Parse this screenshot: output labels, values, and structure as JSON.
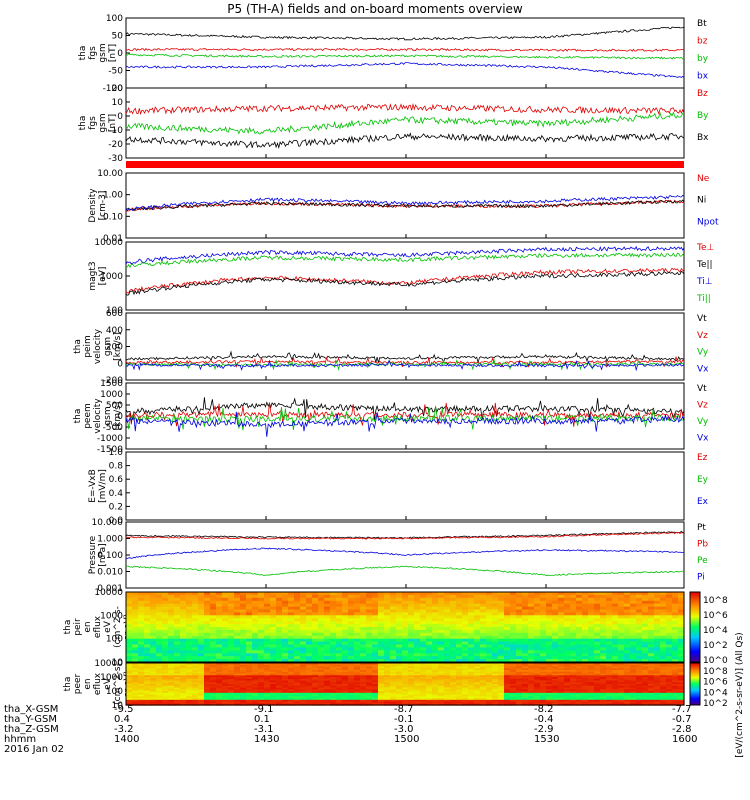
{
  "title": "P5 (TH-A) fields and on-board moments overview",
  "panels": [
    {
      "id": "fgs_gsm",
      "ylabel": [
        "tha",
        "fgs",
        "gsm",
        "[nT]"
      ],
      "ylim": [
        -100,
        100
      ],
      "yticks": [
        "100",
        "50",
        "0",
        "-50",
        "-100"
      ],
      "legend": [
        {
          "text": "Bt",
          "color": "#000000"
        },
        {
          "text": "bz",
          "color": "#e00000"
        },
        {
          "text": "by",
          "color": "#00c000"
        },
        {
          "text": "bx",
          "color": "#0000e0"
        }
      ]
    },
    {
      "id": "fgs_gsm_zoom",
      "ylabel": [
        "tha",
        "fgs",
        "gsm",
        "[nT]"
      ],
      "ylim": [
        -35,
        20
      ],
      "yticks": [
        "20",
        "10",
        "0",
        "-10",
        "-20",
        "-30"
      ],
      "legend": [
        {
          "text": "Bz",
          "color": "#e00000"
        },
        {
          "text": "By",
          "color": "#00c000"
        },
        {
          "text": "Bx",
          "color": "#000000"
        }
      ]
    },
    {
      "id": "density",
      "ylabel": [
        "Density",
        "[cm-3]"
      ],
      "ylim": [
        "0.01",
        "10.00"
      ],
      "yticks": [
        "10.00",
        "1.00",
        "0.10",
        "0.01"
      ],
      "legend": [
        {
          "text": "Ne",
          "color": "#e00000"
        },
        {
          "text": "Ni",
          "color": "#000000"
        },
        {
          "text": "Npot",
          "color": "#0000e0"
        }
      ]
    },
    {
      "id": "temperature",
      "ylabel": [
        "magt3",
        "[eV]"
      ],
      "ylim": [
        "100",
        "10000"
      ],
      "yticks": [
        "10000",
        "1000",
        "100"
      ],
      "legend": [
        {
          "text": "Te⊥",
          "color": "#e00000"
        },
        {
          "text": "Te||",
          "color": "#000000"
        },
        {
          "text": "Ti⊥",
          "color": "#0000e0"
        },
        {
          "text": "Ti||",
          "color": "#00c000"
        }
      ]
    },
    {
      "id": "peim_velocity",
      "ylabel": [
        "tha",
        "peim",
        "velocity",
        "gsm",
        "[km/s]"
      ],
      "ylim": [
        -200,
        600
      ],
      "yticks": [
        "600",
        "400",
        "200",
        "0",
        "-200"
      ],
      "legend": [
        {
          "text": "Vt",
          "color": "#000000"
        },
        {
          "text": "Vz",
          "color": "#e00000"
        },
        {
          "text": "Vy",
          "color": "#00c000"
        },
        {
          "text": "Vx",
          "color": "#0000e0"
        }
      ]
    },
    {
      "id": "peem_velocity",
      "ylabel": [
        "tha",
        "peem",
        "velocity",
        "gsm",
        "[km/s]"
      ],
      "ylim": [
        -1500,
        1500
      ],
      "yticks": [
        "1500",
        "1000",
        "500",
        "0",
        "-500",
        "-1000",
        "-1500"
      ],
      "legend": [
        {
          "text": "Vt",
          "color": "#000000"
        },
        {
          "text": "Vz",
          "color": "#e00000"
        },
        {
          "text": "Vy",
          "color": "#00c000"
        },
        {
          "text": "Vx",
          "color": "#0000e0"
        }
      ]
    },
    {
      "id": "efield",
      "ylabel": [
        "E=-VxB",
        "[mV/m]"
      ],
      "ylim": [
        0,
        1
      ],
      "yticks": [
        "1.0",
        "0.8",
        "0.6",
        "0.4",
        "0.2",
        "0.0"
      ],
      "legend": [
        {
          "text": "Ez",
          "color": "#e00000"
        },
        {
          "text": "Ey",
          "color": "#00c000"
        },
        {
          "text": "Ex",
          "color": "#0000e0"
        }
      ]
    },
    {
      "id": "pressure",
      "ylabel": [
        "Pressure",
        "[nPa]"
      ],
      "ylim": [
        "0.001",
        "10.000"
      ],
      "yticks": [
        "10.000",
        "1.000",
        "0.100",
        "0.010",
        "0.001"
      ],
      "legend": [
        {
          "text": "Pt",
          "color": "#000000"
        },
        {
          "text": "Pb",
          "color": "#e00000"
        },
        {
          "text": "Pe",
          "color": "#00c000"
        },
        {
          "text": "Pi",
          "color": "#0000e0"
        }
      ]
    },
    {
      "id": "peir_spec",
      "ylabel": [
        "tha",
        "peir",
        "en",
        "eflux",
        "eV",
        "(cm^2-s-",
        "sr-eV)"
      ],
      "ylim": [
        "5",
        "20000"
      ],
      "yticks": [
        "10000",
        "1000",
        "100",
        "10"
      ]
    },
    {
      "id": "peer_spec",
      "ylabel": [
        "tha",
        "peer",
        "en",
        "eflux",
        "eV",
        "(cm^2-s-",
        "sr-eV)"
      ],
      "ylim": [
        "5",
        "20000"
      ],
      "yticks": [
        "10000",
        "1000",
        "100",
        "10"
      ]
    }
  ],
  "colorbar": {
    "label": "[eV/(cm^2-s-sr-eV)] (All Qs)",
    "ticks": [
      "10^8",
      "10^6",
      "10^4",
      "10^2",
      "10^0"
    ],
    "ticks2": [
      "10^8",
      "10^6",
      "10^4",
      "10^2"
    ]
  },
  "x_axis": {
    "tick_values": [
      "-9.5",
      "-9.1",
      "-8.7",
      "-8.2",
      "-7.7"
    ],
    "rows": [
      {
        "label": "tha_X-GSM",
        "values": [
          "-9.5",
          "-9.1",
          "-8.7",
          "-8.2",
          "-7.7"
        ]
      },
      {
        "label": "tha_Y-GSM",
        "values": [
          "0.4",
          "0.1",
          "-0.1",
          "-0.4",
          "-0.7"
        ]
      },
      {
        "label": "tha_Z-GSM",
        "values": [
          "-3.2",
          "-3.1",
          "-3.0",
          "-2.9",
          "-2.8"
        ]
      },
      {
        "label": "hhmm",
        "values": [
          "1400",
          "1430",
          "1500",
          "1530",
          "1600"
        ]
      }
    ],
    "date": "2016 Jan 02"
  },
  "chart_data": [
    {
      "type": "line",
      "title": "P5 (TH-A) fields and on-board moments overview",
      "ylabel": "tha fgs gsm [nT]",
      "ylim": [
        -100,
        100
      ],
      "x": [
        "1400",
        "1430",
        "1500",
        "1530",
        "1600"
      ],
      "series": [
        {
          "name": "Bt",
          "values": [
            55,
            45,
            40,
            45,
            75
          ]
        },
        {
          "name": "bz",
          "values": [
            10,
            10,
            10,
            8,
            8
          ]
        },
        {
          "name": "by",
          "values": [
            -5,
            -10,
            -8,
            -12,
            -15
          ]
        },
        {
          "name": "bx",
          "values": [
            -40,
            -40,
            -30,
            -40,
            -70
          ]
        }
      ]
    },
    {
      "type": "line",
      "ylabel": "tha fgs gsm [nT]",
      "ylim": [
        -35,
        20
      ],
      "x": [
        "1400",
        "1430",
        "1500",
        "1530",
        "1600"
      ],
      "series": [
        {
          "name": "Bz",
          "values": [
            2,
            4,
            5,
            3,
            2
          ]
        },
        {
          "name": "By",
          "values": [
            -10,
            -14,
            -5,
            -8,
            -1
          ]
        },
        {
          "name": "Bx",
          "values": [
            -20,
            -25,
            -18,
            -20,
            -18
          ]
        }
      ]
    },
    {
      "type": "line",
      "ylabel": "Density [cm-3]",
      "ylim": [
        0.01,
        10
      ],
      "x": [
        "1400",
        "1430",
        "1500",
        "1530",
        "1600"
      ],
      "series": [
        {
          "name": "Ne",
          "values": [
            0.2,
            0.4,
            0.3,
            0.3,
            0.5
          ]
        },
        {
          "name": "Ni",
          "values": [
            0.2,
            0.4,
            0.3,
            0.3,
            0.5
          ]
        },
        {
          "name": "Npot",
          "values": [
            0.2,
            0.6,
            0.4,
            0.5,
            0.8
          ]
        }
      ]
    },
    {
      "type": "line",
      "ylabel": "magt3 [eV]",
      "ylim": [
        100,
        10000
      ],
      "x": [
        "1400",
        "1430",
        "1500",
        "1530",
        "1600"
      ],
      "series": [
        {
          "name": "Te⊥",
          "values": [
            350,
            900,
            600,
            1300,
            1500
          ]
        },
        {
          "name": "Te||",
          "values": [
            300,
            800,
            550,
            1000,
            1200
          ]
        },
        {
          "name": "Ti⊥",
          "values": [
            2500,
            5000,
            4000,
            6000,
            6500
          ]
        },
        {
          "name": "Ti||",
          "values": [
            2000,
            3500,
            3000,
            4000,
            4200
          ]
        }
      ]
    },
    {
      "type": "line",
      "ylabel": "tha peim velocity gsm [km/s]",
      "ylim": [
        -200,
        600
      ],
      "x": [
        "1400",
        "1430",
        "1500",
        "1530",
        "1600"
      ],
      "series": [
        {
          "name": "Vt",
          "values": [
            50,
            80,
            60,
            80,
            50
          ]
        },
        {
          "name": "Vz",
          "values": [
            10,
            20,
            10,
            10,
            20
          ]
        },
        {
          "name": "Vy",
          "values": [
            -10,
            -20,
            -10,
            -10,
            -10
          ]
        },
        {
          "name": "Vx",
          "values": [
            -20,
            -30,
            -20,
            -30,
            -20
          ]
        }
      ]
    },
    {
      "type": "line",
      "ylabel": "tha peem velocity gsm [km/s]",
      "ylim": [
        -1500,
        1500
      ],
      "x": [
        "1400",
        "1430",
        "1500",
        "1530",
        "1600"
      ],
      "series": [
        {
          "name": "Vt",
          "values": [
            200,
            500,
            300,
            350,
            200
          ]
        },
        {
          "name": "Vz",
          "values": [
            50,
            80,
            50,
            50,
            50
          ]
        },
        {
          "name": "Vy",
          "values": [
            -100,
            -150,
            -100,
            -100,
            -100
          ]
        },
        {
          "name": "Vx",
          "values": [
            -200,
            -400,
            -200,
            -250,
            -150
          ]
        }
      ]
    },
    {
      "type": "line",
      "ylabel": "E=-VxB [mV/m]",
      "ylim": [
        0,
        1
      ],
      "series": []
    },
    {
      "type": "line",
      "ylabel": "Pressure [nPa]",
      "ylim": [
        0.001,
        10
      ],
      "x": [
        "1400",
        "1430",
        "1500",
        "1530",
        "1600"
      ],
      "series": [
        {
          "name": "Pt",
          "values": [
            1.5,
            1.2,
            1.1,
            1.5,
            2.5
          ]
        },
        {
          "name": "Pb",
          "values": [
            1.2,
            1.0,
            1.0,
            1.3,
            2.2
          ]
        },
        {
          "name": "Pe",
          "values": [
            0.02,
            0.006,
            0.02,
            0.006,
            0.01
          ]
        },
        {
          "name": "Pi",
          "values": [
            0.06,
            0.25,
            0.1,
            0.2,
            0.15
          ]
        }
      ]
    },
    {
      "type": "heatmap",
      "ylabel": "tha peir en eflux eV (cm^2-s-sr-eV)",
      "ylim": [
        5,
        20000
      ]
    },
    {
      "type": "heatmap",
      "ylabel": "tha peer en eflux eV (cm^2-s-sr-eV)",
      "ylim": [
        5,
        20000
      ]
    }
  ]
}
